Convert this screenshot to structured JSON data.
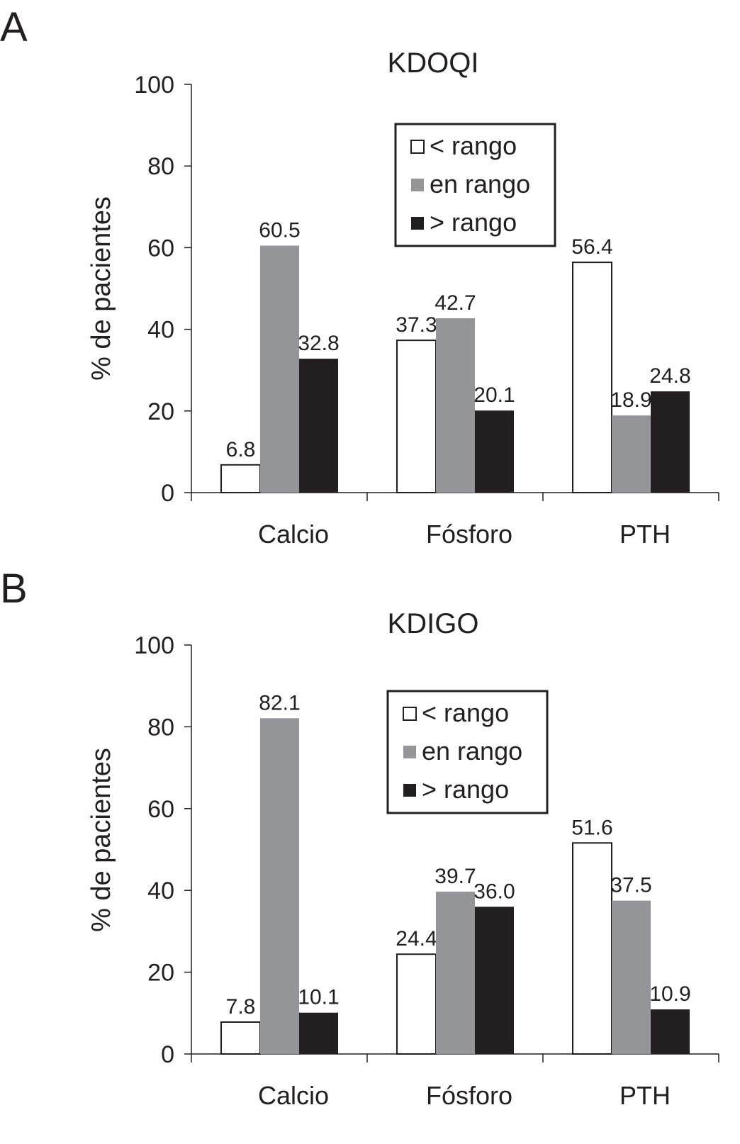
{
  "chart_data": [
    {
      "panel": "A",
      "type": "bar",
      "title": "KDOQI",
      "ylabel": "% de pacientes",
      "xlabel": "",
      "ylim": [
        0,
        100
      ],
      "yticks": [
        0,
        20,
        40,
        60,
        80,
        100
      ],
      "categories": [
        "Calcio",
        "Fósforo",
        "PTH"
      ],
      "legend_position": "top-center",
      "grid": false,
      "series": [
        {
          "name": "< rango",
          "color": "#ffffff",
          "values": [
            6.8,
            37.3,
            56.4
          ],
          "labels": [
            "6.8",
            "37.3",
            "56.4"
          ]
        },
        {
          "name": "en rango",
          "color": "#939598",
          "values": [
            60.5,
            42.7,
            18.9
          ],
          "labels": [
            "60.5",
            "42.7",
            "18.9"
          ]
        },
        {
          "name": "> rango",
          "color": "#231f20",
          "values": [
            32.8,
            20.1,
            24.8
          ],
          "labels": [
            "32.8",
            "20.1",
            "24.8"
          ]
        }
      ]
    },
    {
      "panel": "B",
      "type": "bar",
      "title": "KDIGO",
      "ylabel": "% de pacientes",
      "xlabel": "",
      "ylim": [
        0,
        100
      ],
      "yticks": [
        0,
        20,
        40,
        60,
        80,
        100
      ],
      "categories": [
        "Calcio",
        "Fósforo",
        "PTH"
      ],
      "legend_position": "top-center",
      "grid": false,
      "series": [
        {
          "name": "< rango",
          "color": "#ffffff",
          "values": [
            7.8,
            24.4,
            51.6
          ],
          "labels": [
            "7.8",
            "24.4",
            "51.6"
          ]
        },
        {
          "name": "en rango",
          "color": "#939598",
          "values": [
            82.1,
            39.7,
            37.5
          ],
          "labels": [
            "82.1",
            "39.7",
            "37.5"
          ]
        },
        {
          "name": "> rango",
          "color": "#231f20",
          "values": [
            10.1,
            36.0,
            10.9
          ],
          "labels": [
            "10.1",
            "36.0",
            "10.9"
          ]
        }
      ]
    }
  ]
}
